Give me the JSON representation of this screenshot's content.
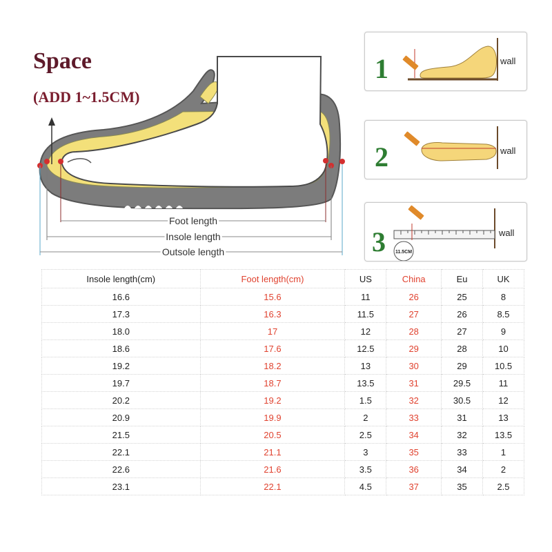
{
  "heading": {
    "title": "Space",
    "subtitle": "(ADD 1~1.5CM)"
  },
  "diagram": {
    "foot_length_label": "Foot length",
    "insole_length_label": "Insole length",
    "outsole_length_label": "Outsole length",
    "colors": {
      "sole": "#7a7a7a",
      "insole": "#f3e07a",
      "foot": "#ffffff",
      "marker": "#d32f2f",
      "guide": "#5aa7c9"
    }
  },
  "steps": [
    {
      "number": "1",
      "wall_label": "wall"
    },
    {
      "number": "2",
      "wall_label": "wall"
    },
    {
      "number": "3",
      "wall_label": "wall",
      "ruler_badge": "11.5CM"
    }
  ],
  "size_table": {
    "headers": [
      "Insole length(cm)",
      "Foot length(cm)",
      "US",
      "China",
      "Eu",
      "UK"
    ],
    "highlight_color": "#e0422f",
    "rows": [
      [
        "16.6",
        "15.6",
        "11",
        "26",
        "25",
        "8"
      ],
      [
        "17.3",
        "16.3",
        "11.5",
        "27",
        "26",
        "8.5"
      ],
      [
        "18.0",
        "17",
        "12",
        "28",
        "27",
        "9"
      ],
      [
        "18.6",
        "17.6",
        "12.5",
        "29",
        "28",
        "10"
      ],
      [
        "19.2",
        "18.2",
        "13",
        "30",
        "29",
        "10.5"
      ],
      [
        "19.7",
        "18.7",
        "13.5",
        "31",
        "29.5",
        "11"
      ],
      [
        "20.2",
        "19.2",
        "1.5",
        "32",
        "30.5",
        "12"
      ],
      [
        "20.9",
        "19.9",
        "2",
        "33",
        "31",
        "13"
      ],
      [
        "21.5",
        "20.5",
        "2.5",
        "34",
        "32",
        "13.5"
      ],
      [
        "22.1",
        "21.1",
        "3",
        "35",
        "33",
        "1"
      ],
      [
        "22.6",
        "21.6",
        "3.5",
        "36",
        "34",
        "2"
      ],
      [
        "23.1",
        "22.1",
        "4.5",
        "37",
        "35",
        "2.5"
      ]
    ]
  }
}
